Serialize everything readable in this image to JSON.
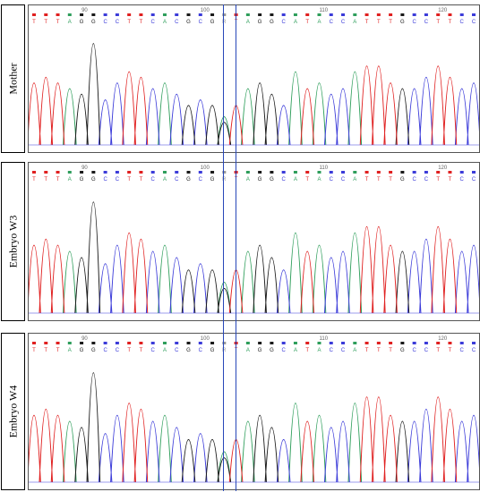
{
  "colors": {
    "A": "#2e9e5b",
    "C": "#3b3bd9",
    "G": "#1a1a1a",
    "T": "#e02020",
    "N": "#999999",
    "highlight": "#2747b8"
  },
  "panels": [
    {
      "label": "Mother",
      "positions": [
        "90",
        "100",
        "110",
        "120"
      ],
      "bases": [
        "T",
        "T",
        "T",
        "A",
        "G",
        "G",
        "C",
        "C",
        "T",
        "T",
        "C",
        "A",
        "C",
        "G",
        "C",
        "G",
        "R",
        "T",
        "A",
        "G",
        "G",
        "C",
        "A",
        "T",
        "A",
        "C",
        "C",
        "A",
        "T",
        "T",
        "T",
        "G",
        "C",
        "C",
        "T",
        "T",
        "C",
        "C"
      ]
    },
    {
      "label": "Embryo W3",
      "positions": [
        "90",
        "100",
        "110",
        "120"
      ],
      "bases": [
        "T",
        "T",
        "T",
        "A",
        "G",
        "G",
        "C",
        "C",
        "T",
        "T",
        "C",
        "A",
        "C",
        "G",
        "C",
        "G",
        "R",
        "T",
        "A",
        "G",
        "G",
        "C",
        "A",
        "T",
        "A",
        "C",
        "C",
        "A",
        "T",
        "T",
        "T",
        "G",
        "C",
        "C",
        "T",
        "T",
        "C",
        "C"
      ]
    },
    {
      "label": "Embryo W4",
      "positions": [
        "90",
        "100",
        "110",
        "120"
      ],
      "bases": [
        "T",
        "T",
        "T",
        "A",
        "G",
        "G",
        "C",
        "C",
        "T",
        "T",
        "C",
        "A",
        "C",
        "G",
        "C",
        "G",
        "R",
        "T",
        "A",
        "G",
        "G",
        "C",
        "A",
        "T",
        "A",
        "C",
        "C",
        "A",
        "T",
        "T",
        "T",
        "G",
        "C",
        "C",
        "T",
        "T",
        "C",
        "C"
      ]
    }
  ]
}
